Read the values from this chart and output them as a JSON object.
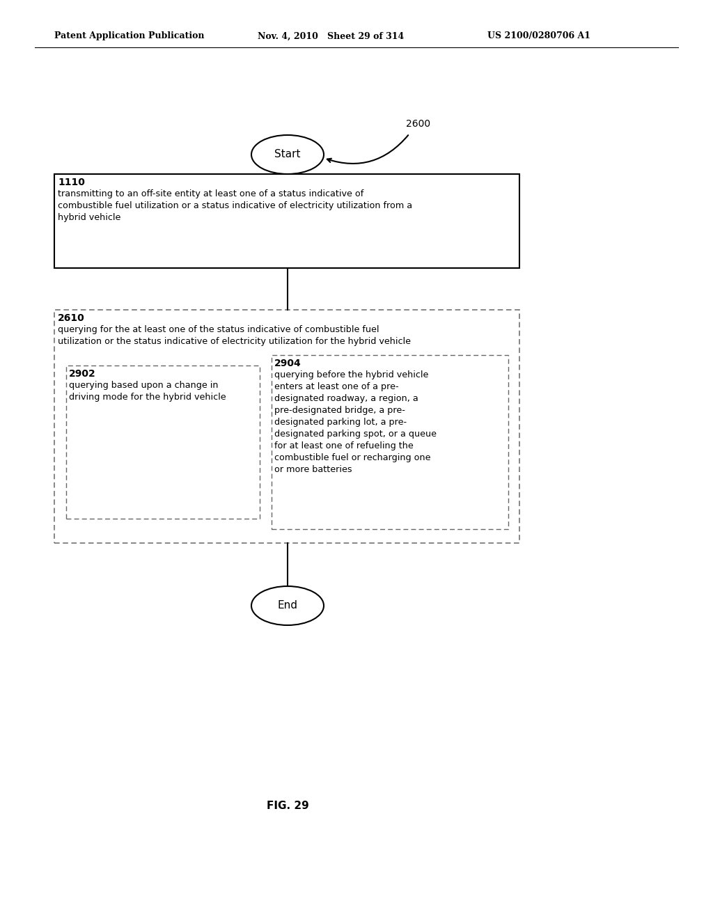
{
  "header_left": "Patent Application Publication",
  "header_mid": "Nov. 4, 2010   Sheet 29 of 314",
  "header_right": "US 2100/0280706 A1",
  "fig_label": "FIG. 29",
  "start_label": "Start",
  "end_label": "End",
  "ref_2600": "2600",
  "box1_ref": "1110",
  "box1_text": "transmitting to an off-site entity at least one of a status indicative of\ncombustible fuel utilization or a status indicative of electricity utilization from a\nhybrid vehicle",
  "box2_ref": "2610",
  "box2_text": "querying for the at least one of the status indicative of combustible fuel\nutilization or the status indicative of electricity utilization for the hybrid vehicle",
  "box3_ref": "2902",
  "box3_text": "querying based upon a change in\ndriving mode for the hybrid vehicle",
  "box4_ref": "2904",
  "box4_text": "querying before the hybrid vehicle\nenters at least one of a pre-\ndesignated roadway, a region, a\npre-designated bridge, a pre-\ndesignated parking lot, a pre-\ndesignated parking spot, or a queue\nfor at least one of refueling the\ncombustible fuel or recharging one\nor more batteries",
  "bg_color": "#ffffff",
  "text_color": "#000000",
  "box_edge_color": "#000000",
  "dashed_edge_color": "#666666",
  "header_line_color": "#000000"
}
